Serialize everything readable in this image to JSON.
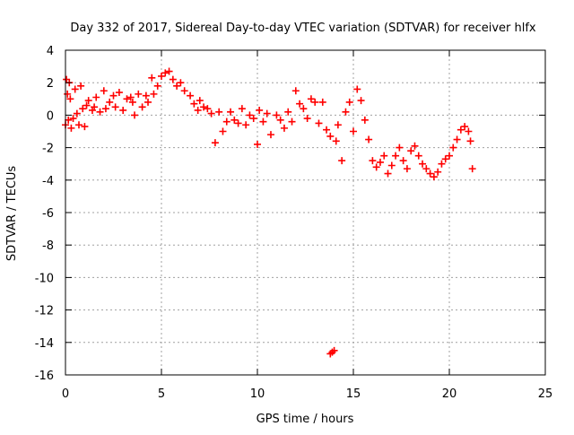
{
  "chart_data": {
    "type": "scatter",
    "title": "Day 332 of 2017, Sidereal Day-to-day VTEC variation (SDTVAR) for receiver hlfx",
    "xlabel": "GPS time / hours",
    "ylabel": "SDTVAR / TECUs",
    "xlim": [
      0,
      25
    ],
    "ylim": [
      -16,
      4
    ],
    "xticks": [
      0,
      5,
      10,
      15,
      20,
      25
    ],
    "yticks": [
      4,
      2,
      0,
      -2,
      -4,
      -6,
      -8,
      -10,
      -12,
      -14,
      -16
    ],
    "grid": true,
    "marker": "+",
    "series": [
      {
        "name": "SDTVAR",
        "color": "#ff0000",
        "points": [
          [
            0.0,
            -0.6
          ],
          [
            0.05,
            2.2
          ],
          [
            0.1,
            1.3
          ],
          [
            0.15,
            -0.3
          ],
          [
            0.2,
            2.0
          ],
          [
            0.25,
            1.0
          ],
          [
            0.3,
            -0.8
          ],
          [
            0.4,
            -0.2
          ],
          [
            0.5,
            1.6
          ],
          [
            0.6,
            0.1
          ],
          [
            0.7,
            -0.6
          ],
          [
            0.8,
            1.8
          ],
          [
            0.9,
            0.4
          ],
          [
            1.0,
            -0.7
          ],
          [
            1.1,
            0.6
          ],
          [
            1.2,
            0.9
          ],
          [
            1.4,
            0.3
          ],
          [
            1.5,
            0.5
          ],
          [
            1.6,
            1.1
          ],
          [
            1.8,
            0.2
          ],
          [
            2.0,
            1.5
          ],
          [
            2.1,
            0.4
          ],
          [
            2.3,
            0.8
          ],
          [
            2.5,
            1.2
          ],
          [
            2.6,
            0.5
          ],
          [
            2.8,
            1.4
          ],
          [
            3.0,
            0.3
          ],
          [
            3.2,
            1.0
          ],
          [
            3.4,
            1.1
          ],
          [
            3.5,
            0.8
          ],
          [
            3.6,
            0.0
          ],
          [
            3.8,
            1.3
          ],
          [
            4.0,
            0.5
          ],
          [
            4.2,
            1.2
          ],
          [
            4.3,
            0.8
          ],
          [
            4.5,
            2.3
          ],
          [
            4.6,
            1.3
          ],
          [
            4.8,
            1.8
          ],
          [
            5.0,
            2.4
          ],
          [
            5.2,
            2.6
          ],
          [
            5.4,
            2.7
          ],
          [
            5.6,
            2.2
          ],
          [
            5.8,
            1.8
          ],
          [
            6.0,
            2.0
          ],
          [
            6.2,
            1.5
          ],
          [
            6.5,
            1.2
          ],
          [
            6.7,
            0.7
          ],
          [
            6.9,
            0.3
          ],
          [
            7.0,
            0.9
          ],
          [
            7.2,
            0.5
          ],
          [
            7.4,
            0.4
          ],
          [
            7.6,
            0.1
          ],
          [
            7.8,
            -1.7
          ],
          [
            8.0,
            0.2
          ],
          [
            8.2,
            -1.0
          ],
          [
            8.4,
            -0.4
          ],
          [
            8.6,
            0.2
          ],
          [
            8.8,
            -0.3
          ],
          [
            9.0,
            -0.5
          ],
          [
            9.2,
            0.4
          ],
          [
            9.4,
            -0.6
          ],
          [
            9.6,
            0.0
          ],
          [
            9.8,
            -0.2
          ],
          [
            10.0,
            -1.8
          ],
          [
            10.1,
            0.3
          ],
          [
            10.3,
            -0.4
          ],
          [
            10.5,
            0.1
          ],
          [
            10.7,
            -1.2
          ],
          [
            11.0,
            0.0
          ],
          [
            11.2,
            -0.3
          ],
          [
            11.4,
            -0.8
          ],
          [
            11.6,
            0.2
          ],
          [
            11.8,
            -0.4
          ],
          [
            12.0,
            1.5
          ],
          [
            12.2,
            0.7
          ],
          [
            12.4,
            0.4
          ],
          [
            12.6,
            -0.2
          ],
          [
            12.8,
            1.0
          ],
          [
            13.0,
            0.8
          ],
          [
            13.2,
            -0.5
          ],
          [
            13.4,
            0.8
          ],
          [
            13.6,
            -0.9
          ],
          [
            13.8,
            -1.3
          ],
          [
            13.8,
            -14.7
          ],
          [
            13.9,
            -14.6
          ],
          [
            14.0,
            -14.5
          ],
          [
            14.1,
            -1.6
          ],
          [
            14.2,
            -0.6
          ],
          [
            14.4,
            -2.8
          ],
          [
            14.6,
            0.2
          ],
          [
            14.8,
            0.8
          ],
          [
            15.0,
            -1.0
          ],
          [
            15.2,
            1.6
          ],
          [
            15.4,
            0.9
          ],
          [
            15.6,
            -0.3
          ],
          [
            15.8,
            -1.5
          ],
          [
            16.0,
            -2.8
          ],
          [
            16.2,
            -3.2
          ],
          [
            16.4,
            -2.9
          ],
          [
            16.6,
            -2.5
          ],
          [
            16.8,
            -3.6
          ],
          [
            17.0,
            -3.1
          ],
          [
            17.2,
            -2.5
          ],
          [
            17.4,
            -2.0
          ],
          [
            17.6,
            -2.8
          ],
          [
            17.8,
            -3.3
          ],
          [
            18.0,
            -2.2
          ],
          [
            18.2,
            -1.9
          ],
          [
            18.4,
            -2.5
          ],
          [
            18.6,
            -3.0
          ],
          [
            18.8,
            -3.3
          ],
          [
            19.0,
            -3.6
          ],
          [
            19.2,
            -3.8
          ],
          [
            19.4,
            -3.5
          ],
          [
            19.6,
            -3.0
          ],
          [
            19.8,
            -2.7
          ],
          [
            20.0,
            -2.5
          ],
          [
            20.2,
            -2.0
          ],
          [
            20.4,
            -1.5
          ],
          [
            20.6,
            -0.9
          ],
          [
            20.8,
            -0.7
          ],
          [
            21.0,
            -1.0
          ],
          [
            21.1,
            -1.6
          ],
          [
            21.2,
            -3.3
          ]
        ]
      }
    ]
  }
}
